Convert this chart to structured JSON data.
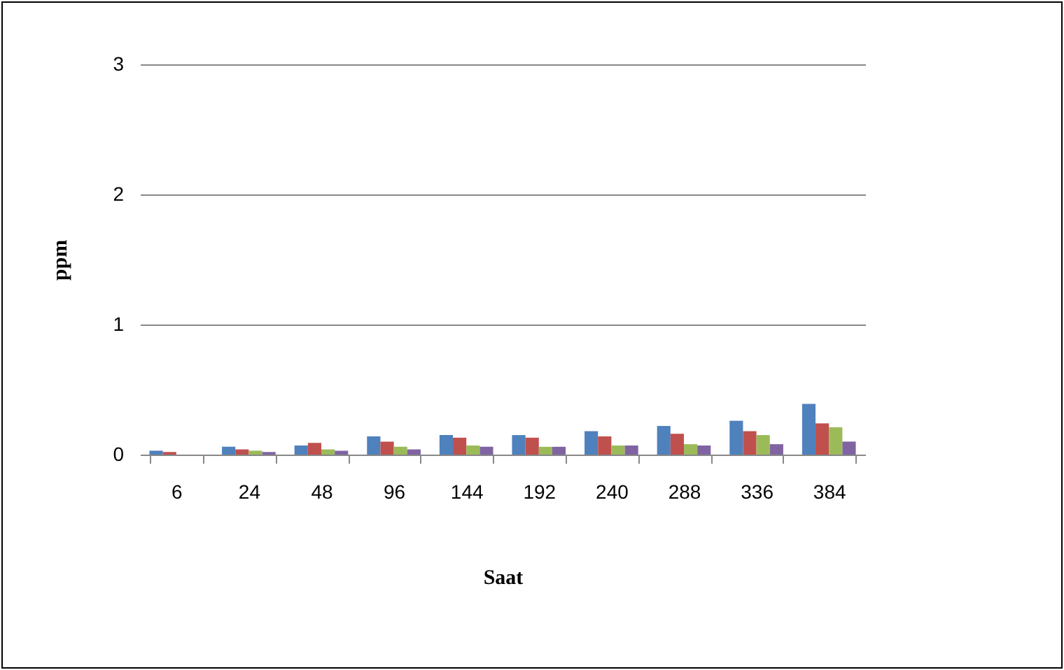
{
  "chart_data": {
    "type": "bar",
    "xlabel": "Saat",
    "ylabel": "ppm",
    "categories": [
      "6",
      "24",
      "48",
      "96",
      "144",
      "192",
      "240",
      "288",
      "336",
      "384"
    ],
    "series": [
      {
        "color": "#4f81bd",
        "values": [
          0.03,
          0.06,
          0.07,
          0.14,
          0.15,
          0.15,
          0.18,
          0.22,
          0.26,
          0.39
        ]
      },
      {
        "color": "#c0504d",
        "values": [
          0.02,
          0.04,
          0.09,
          0.1,
          0.13,
          0.13,
          0.14,
          0.16,
          0.18,
          0.24
        ]
      },
      {
        "color": "#9bbb59",
        "values": [
          0,
          0.03,
          0.04,
          0.06,
          0.07,
          0.06,
          0.07,
          0.08,
          0.15,
          0.21
        ]
      },
      {
        "color": "#8064a2",
        "values": [
          0,
          0.02,
          0.03,
          0.04,
          0.06,
          0.06,
          0.07,
          0.07,
          0.08,
          0.1
        ]
      }
    ],
    "ylim": [
      0,
      3
    ],
    "yticks": [
      0,
      1,
      2,
      3
    ],
    "grid": "y",
    "legend": false
  }
}
